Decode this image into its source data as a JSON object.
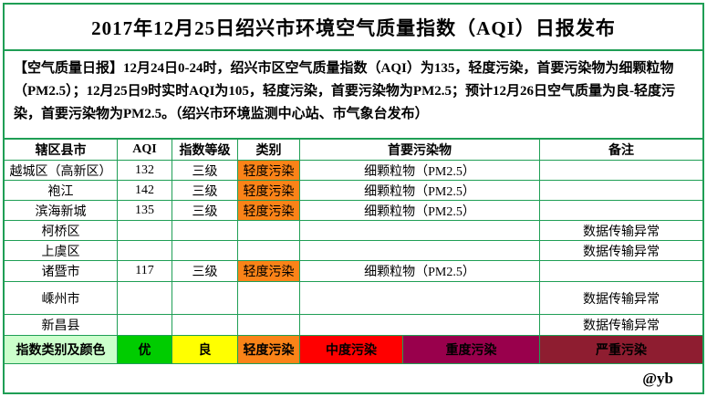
{
  "title": "2017年12月25日绍兴市环境空气质量指数（AQI）日报发布",
  "summary": "【空气质量日报】12月24日0-24时，绍兴市区空气质量指数（AQI）为135，轻度污染，首要污染物为细颗粒物（PM2.5）；12月25日9时实时AQI为105，轻度污染，首要污染物为PM2.5；预计12月26日空气质量为良-轻度污染，首要污染物为PM2.5。（绍兴市环境监测中心站、市气象台发布）",
  "table": {
    "headers": {
      "district": "辖区县市",
      "aqi": "AQI",
      "grade": "指数等级",
      "category": "类别",
      "pollutant": "首要污染物",
      "note": "备注"
    },
    "rows": [
      {
        "district": "越城区（高新区）",
        "aqi": "132",
        "grade": "三级",
        "category": "轻度污染",
        "pollutant": "细颗粒物（PM2.5）",
        "note": ""
      },
      {
        "district": "袍江",
        "aqi": "142",
        "grade": "三级",
        "category": "轻度污染",
        "pollutant": "细颗粒物（PM2.5）",
        "note": ""
      },
      {
        "district": "滨海新城",
        "aqi": "135",
        "grade": "三级",
        "category": "轻度污染",
        "pollutant": "细颗粒物（PM2.5）",
        "note": ""
      },
      {
        "district": "柯桥区",
        "aqi": "",
        "grade": "",
        "category": "",
        "pollutant": "",
        "note": "数据传输异常"
      },
      {
        "district": "上虞区",
        "aqi": "",
        "grade": "",
        "category": "",
        "pollutant": "",
        "note": "数据传输异常"
      },
      {
        "district": "诸暨市",
        "aqi": "117",
        "grade": "三级",
        "category": "轻度污染",
        "pollutant": "细颗粒物（PM2.5）",
        "note": ""
      },
      {
        "district": "嵊州市",
        "aqi": "",
        "grade": "",
        "category": "",
        "pollutant": "",
        "note": "数据传输异常"
      },
      {
        "district": "新昌县",
        "aqi": "",
        "grade": "",
        "category": "",
        "pollutant": "",
        "note": "数据传输异常"
      }
    ]
  },
  "legend": {
    "label": "指数类别及颜色",
    "label_bg": "#CCFFCC",
    "items": [
      {
        "label": "优",
        "color": "#00CC00"
      },
      {
        "label": "良",
        "color": "#FFFF00"
      },
      {
        "label": "轻度污染",
        "color": "#FA8318"
      },
      {
        "label": "中度污染",
        "color": "#FF0000"
      },
      {
        "label": "重度污染",
        "color": "#99004C"
      },
      {
        "label": "严重污染",
        "color": "#8E1D30"
      }
    ]
  },
  "footer": {
    "signature": "@yb"
  },
  "colors": {
    "border_green": "#1f9e55",
    "category_light_pollution": "#FA8318"
  }
}
